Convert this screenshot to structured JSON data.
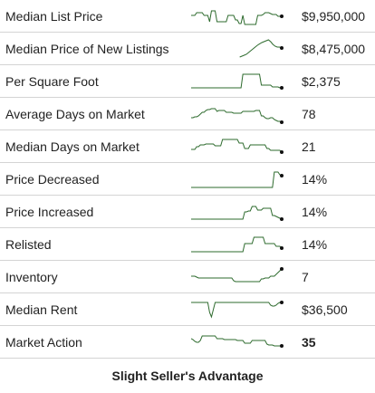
{
  "colors": {
    "line": "#2e6b2e",
    "dot": "#111111",
    "divider": "#d4d4d4"
  },
  "rows": [
    {
      "label": "Median List Price",
      "value": "$9,950,000",
      "trend": [
        0.55,
        0.55,
        0.55,
        0.7,
        0.7,
        0.7,
        0.7,
        0.55,
        0.55,
        0.55,
        0.2,
        0.8,
        0.8,
        0.8,
        0.2,
        0.2,
        0.2,
        0.2,
        0.2,
        0.2,
        0.55,
        0.55,
        0.55,
        0.55,
        0.3,
        0.3,
        0.1,
        0.1,
        0.55,
        0.05,
        0.05,
        0.05,
        0.05,
        0.05,
        0.05,
        0.05,
        0.55,
        0.55,
        0.55,
        0.6,
        0.7,
        0.7,
        0.7,
        0.65,
        0.6,
        0.6,
        0.6,
        0.5,
        0.5,
        0.5
      ]
    },
    {
      "label": "Median Price of New Listings",
      "value": "$8,475,000",
      "trend": [
        null,
        null,
        null,
        null,
        null,
        null,
        null,
        null,
        null,
        null,
        null,
        null,
        null,
        null,
        null,
        null,
        null,
        null,
        null,
        null,
        null,
        null,
        0.05,
        0.1,
        0.15,
        0.2,
        0.3,
        0.4,
        0.5,
        0.6,
        0.7,
        0.78,
        0.85,
        0.9,
        0.95,
        1,
        0.9,
        0.75,
        0.65,
        0.6,
        0.6,
        0.55
      ]
    },
    {
      "label": "Per Square Foot",
      "value": "$2,375",
      "trend": [
        0.15,
        0.15,
        0.15,
        0.15,
        0.15,
        0.15,
        0.15,
        0.15,
        0.15,
        0.15,
        0.15,
        0.15,
        0.15,
        0.15,
        0.15,
        0.15,
        0.15,
        0.15,
        0.15,
        0.15,
        0.15,
        0.15,
        0.15,
        0.15,
        0.15,
        0.15,
        0.15,
        0.15,
        0.9,
        0.9,
        0.9,
        0.9,
        0.9,
        0.9,
        0.9,
        0.9,
        0.9,
        0.9,
        0.3,
        0.3,
        0.3,
        0.3,
        0.3,
        0.3,
        0.2,
        0.2,
        0.2,
        0.2,
        0.15,
        0.15
      ]
    },
    {
      "label": "Average Days on Market",
      "value": "78",
      "trend": [
        0.3,
        0.3,
        0.35,
        0.35,
        0.4,
        0.5,
        0.6,
        0.6,
        0.7,
        0.75,
        0.75,
        0.8,
        0.8,
        0.8,
        0.65,
        0.7,
        0.7,
        0.7,
        0.7,
        0.6,
        0.6,
        0.6,
        0.6,
        0.55,
        0.55,
        0.55,
        0.55,
        0.55,
        0.65,
        0.65,
        0.65,
        0.65,
        0.65,
        0.65,
        0.65,
        0.7,
        0.7,
        0.7,
        0.4,
        0.4,
        0.3,
        0.25,
        0.25,
        0.3,
        0.3,
        0.2,
        0.15,
        0.1,
        0.1,
        0.05
      ]
    },
    {
      "label": "Median Days on Market",
      "value": "21",
      "trend": [
        0.35,
        0.35,
        0.35,
        0.5,
        0.5,
        0.6,
        0.6,
        0.6,
        0.65,
        0.65,
        0.65,
        0.65,
        0.65,
        0.55,
        0.55,
        0.55,
        0.55,
        0.9,
        0.9,
        0.9,
        0.9,
        0.9,
        0.9,
        0.9,
        0.9,
        0.9,
        0.7,
        0.7,
        0.7,
        0.4,
        0.4,
        0.4,
        0.6,
        0.6,
        0.6,
        0.6,
        0.6,
        0.6,
        0.6,
        0.6,
        0.6,
        0.4,
        0.4,
        0.3,
        0.3,
        0.3,
        0.3,
        0.3,
        0.3,
        0.2
      ]
    },
    {
      "label": "Price Decreased",
      "value": "14%",
      "trend": [
        0.05,
        0.05,
        0.05,
        0.05,
        0.05,
        0.05,
        0.05,
        0.05,
        0.05,
        0.05,
        0.05,
        0.05,
        0.05,
        0.05,
        0.05,
        0.05,
        0.05,
        0.05,
        0.05,
        0.05,
        0.05,
        0.05,
        0.05,
        0.05,
        0.05,
        0.05,
        0.05,
        0.05,
        0.05,
        0.05,
        0.05,
        0.05,
        0.05,
        0.05,
        0.05,
        0.05,
        0.05,
        0.05,
        0.05,
        0.05,
        0.05,
        0.05,
        0.05,
        0.05,
        0.05,
        0.9,
        0.9,
        0.9,
        0.75,
        0.7
      ]
    },
    {
      "label": "Price Increased",
      "value": "14%",
      "trend": [
        0.1,
        0.1,
        0.1,
        0.1,
        0.1,
        0.1,
        0.1,
        0.1,
        0.1,
        0.1,
        0.1,
        0.1,
        0.1,
        0.1,
        0.1,
        0.1,
        0.1,
        0.1,
        0.1,
        0.1,
        0.1,
        0.1,
        0.1,
        0.1,
        0.1,
        0.1,
        0.1,
        0.1,
        0.1,
        0.5,
        0.5,
        0.55,
        0.55,
        0.8,
        0.8,
        0.8,
        0.6,
        0.6,
        0.6,
        0.7,
        0.7,
        0.7,
        0.7,
        0.7,
        0.3,
        0.3,
        0.25,
        0.2,
        0.15,
        0.1
      ]
    },
    {
      "label": "Relisted",
      "value": "14%",
      "trend": [
        0.1,
        0.1,
        0.1,
        0.1,
        0.1,
        0.1,
        0.1,
        0.1,
        0.1,
        0.1,
        0.1,
        0.1,
        0.1,
        0.1,
        0.1,
        0.1,
        0.1,
        0.1,
        0.1,
        0.1,
        0.1,
        0.1,
        0.1,
        0.1,
        0.1,
        0.1,
        0.1,
        0.1,
        0.1,
        0.55,
        0.55,
        0.55,
        0.55,
        0.55,
        0.9,
        0.9,
        0.9,
        0.9,
        0.9,
        0.9,
        0.55,
        0.55,
        0.55,
        0.55,
        0.55,
        0.55,
        0.4,
        0.4,
        0.4,
        0.3
      ]
    },
    {
      "label": "Inventory",
      "value": "7",
      "trend": [
        0.55,
        0.55,
        0.55,
        0.5,
        0.45,
        0.45,
        0.45,
        0.45,
        0.45,
        0.45,
        0.45,
        0.45,
        0.45,
        0.45,
        0.45,
        0.45,
        0.45,
        0.45,
        0.45,
        0.45,
        0.45,
        0.45,
        0.45,
        0.3,
        0.25,
        0.25,
        0.25,
        0.25,
        0.25,
        0.25,
        0.25,
        0.25,
        0.25,
        0.25,
        0.25,
        0.25,
        0.25,
        0.25,
        0.4,
        0.4,
        0.45,
        0.45,
        0.45,
        0.55,
        0.55,
        0.55,
        0.65,
        0.75,
        0.85,
        0.95
      ]
    },
    {
      "label": "Median Rent",
      "value": "$36,500",
      "trend": [
        0.9,
        0.9,
        0.9,
        0.9,
        0.9,
        0.9,
        0.9,
        0.9,
        0.9,
        0.9,
        0.35,
        0.1,
        0.5,
        0.9,
        0.9,
        0.9,
        0.9,
        0.9,
        0.9,
        0.9,
        0.9,
        0.9,
        0.9,
        0.9,
        0.9,
        0.9,
        0.9,
        0.9,
        0.9,
        0.9,
        0.9,
        0.9,
        0.9,
        0.9,
        0.9,
        0.9,
        0.9,
        0.9,
        0.9,
        0.9,
        0.9,
        0.9,
        0.9,
        0.75,
        0.7,
        0.7,
        0.75,
        0.85,
        0.9,
        0.9
      ]
    },
    {
      "label": "Market Action",
      "value": "35",
      "trend": [
        0.7,
        0.65,
        0.55,
        0.5,
        0.5,
        0.6,
        0.85,
        0.85,
        0.85,
        0.85,
        0.85,
        0.85,
        0.85,
        0.85,
        0.7,
        0.7,
        0.7,
        0.7,
        0.65,
        0.65,
        0.65,
        0.65,
        0.65,
        0.65,
        0.65,
        0.6,
        0.6,
        0.6,
        0.6,
        0.45,
        0.45,
        0.45,
        0.45,
        0.6,
        0.6,
        0.6,
        0.6,
        0.6,
        0.6,
        0.6,
        0.6,
        0.4,
        0.35,
        0.35,
        0.35,
        0.3,
        0.3,
        0.3,
        0.3,
        0.3
      ]
    }
  ],
  "footer": {
    "label": "Slight Seller's Advantage"
  }
}
